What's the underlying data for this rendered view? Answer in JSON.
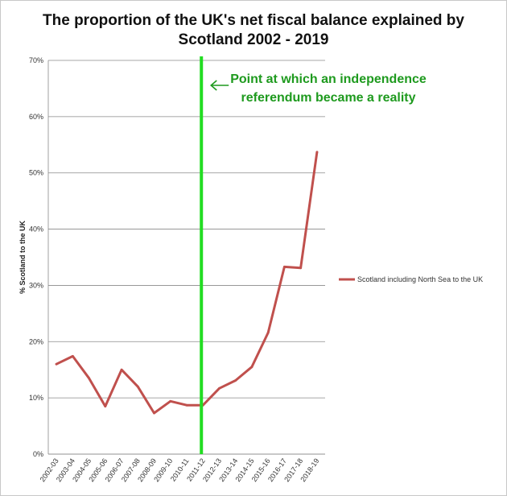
{
  "chart_data": {
    "type": "line",
    "title_lines": [
      "The proportion of the UK's net fiscal balance explained by",
      "Scotland 2002 - 2019"
    ],
    "xlabel": "",
    "ylabel": "% Scotland to the UK",
    "ylim": [
      0,
      0.7
    ],
    "yticks": [
      "0%",
      "10%",
      "20%",
      "30%",
      "40%",
      "50%",
      "60%",
      "70%"
    ],
    "grid": true,
    "legend_position": "right",
    "categories": [
      "2002-03",
      "2003-04",
      "2004-05",
      "2005-06",
      "2006-07",
      "2007-08",
      "2008-09",
      "2009-10",
      "2010-11",
      "2011-12",
      "2012-13",
      "2013-14",
      "2014-15",
      "2015-16",
      "2016-17",
      "2017-18",
      "2018-19"
    ],
    "series": [
      {
        "name": "Scotland including North Sea to the UK",
        "color": "#c0504d",
        "values": [
          0.16,
          0.174,
          0.135,
          0.085,
          0.15,
          0.12,
          0.073,
          0.094,
          0.087,
          0.087,
          0.117,
          0.131,
          0.155,
          0.216,
          0.333,
          0.331,
          0.537
        ]
      }
    ],
    "annotation": {
      "lines": [
        "Point at which an independence",
        "referendum became a reality"
      ],
      "color": "#1e9a1e",
      "marker_line_color": "#22dd22",
      "marker_category": "2011-12"
    }
  }
}
